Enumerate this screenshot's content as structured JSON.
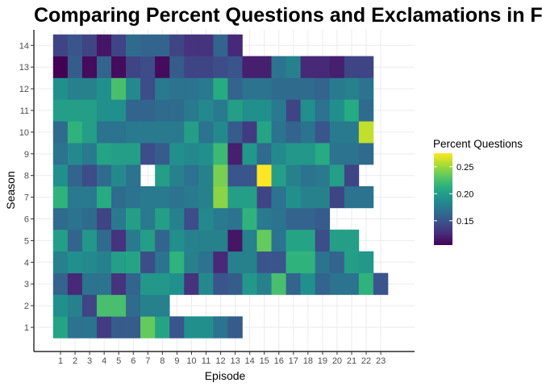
{
  "chart_data": {
    "type": "heatmap",
    "title": "Comparing Percent Questions and Exclamations in Friends",
    "xlabel": "Episode",
    "ylabel": "Season",
    "x_categories": [
      "1",
      "2",
      "3",
      "4",
      "5",
      "6",
      "7",
      "8",
      "9",
      "10",
      "11",
      "12",
      "13",
      "14",
      "15",
      "16",
      "17",
      "18",
      "19",
      "20",
      "21",
      "22",
      "23"
    ],
    "y_categories": [
      "1",
      "2",
      "3",
      "4",
      "5",
      "6",
      "7",
      "8",
      "9",
      "10",
      "11",
      "12",
      "13",
      "14"
    ],
    "legend": {
      "title": "Percent Questions",
      "ticks": [
        0.15,
        0.2,
        0.25
      ],
      "tick_labels": [
        "0.15",
        "0.20",
        "0.25"
      ],
      "min": 0.105,
      "max": 0.275,
      "colorscale": "viridis",
      "position": "right"
    },
    "grid": true,
    "rows": [
      {
        "season": 1,
        "values": [
          0.205,
          0.17,
          0.17,
          0.135,
          0.155,
          0.155,
          0.235,
          0.205,
          0.15,
          0.19,
          0.19,
          0.17,
          0.155
        ]
      },
      {
        "season": 2,
        "values": [
          0.19,
          0.18,
          0.14,
          0.225,
          0.225,
          0.165,
          0.18,
          0.18
        ]
      },
      {
        "season": 3,
        "values": [
          0.16,
          0.125,
          0.17,
          0.17,
          0.13,
          0.16,
          0.195,
          0.195,
          0.19,
          0.13,
          0.185,
          0.15,
          0.155,
          0.195,
          0.18,
          0.225,
          0.16,
          0.19,
          0.16,
          0.17,
          0.17,
          0.215,
          0.15
        ]
      },
      {
        "season": 4,
        "values": [
          0.18,
          0.19,
          0.185,
          0.18,
          0.2,
          0.205,
          0.145,
          0.17,
          0.215,
          0.18,
          0.17,
          0.125,
          0.18,
          0.18,
          0.15,
          0.15,
          0.215,
          0.215,
          0.17,
          0.16,
          0.2,
          0.195
        ]
      },
      {
        "season": 5,
        "values": [
          0.2,
          0.16,
          0.195,
          0.165,
          0.13,
          0.175,
          0.2,
          0.16,
          0.19,
          0.18,
          0.18,
          0.18,
          0.115,
          0.18,
          0.235,
          0.17,
          0.205,
          0.205,
          0.145,
          0.2,
          0.2
        ]
      },
      {
        "season": 6,
        "values": [
          0.165,
          0.17,
          0.165,
          0.14,
          0.175,
          0.2,
          0.175,
          0.2,
          0.18,
          0.145,
          0.185,
          0.175,
          0.17,
          0.215,
          0.175,
          0.17,
          0.16,
          0.16,
          0.155
        ]
      },
      {
        "season": 7,
        "values": [
          0.215,
          0.175,
          0.175,
          0.21,
          0.165,
          0.17,
          0.175,
          0.175,
          0.17,
          0.175,
          0.18,
          0.245,
          0.2,
          0.2,
          0.14,
          0.17,
          0.19,
          0.18,
          0.18,
          0.14,
          0.17,
          0.17
        ]
      },
      {
        "season": 8,
        "values": [
          0.19,
          0.16,
          0.145,
          0.165,
          0.185,
          0.17,
          null,
          0.2,
          0.18,
          0.17,
          0.18,
          0.24,
          0.15,
          0.15,
          0.275,
          0.2,
          0.18,
          0.17,
          0.175,
          0.2,
          0.14
        ]
      },
      {
        "season": 9,
        "values": [
          0.17,
          0.185,
          0.175,
          0.205,
          0.2,
          0.2,
          0.145,
          0.155,
          0.19,
          0.185,
          0.19,
          0.22,
          0.12,
          0.195,
          0.165,
          0.185,
          0.195,
          0.195,
          0.21,
          0.17,
          0.17,
          0.165
        ]
      },
      {
        "season": 10,
        "values": [
          0.165,
          0.215,
          0.2,
          0.17,
          0.17,
          0.175,
          0.175,
          0.175,
          0.175,
          0.2,
          0.17,
          0.185,
          0.155,
          0.135,
          0.205,
          0.17,
          0.16,
          0.17,
          0.15,
          0.175,
          0.175,
          0.26
        ]
      },
      {
        "season": 11,
        "values": [
          0.2,
          0.2,
          0.2,
          0.19,
          0.19,
          0.16,
          0.16,
          0.165,
          0.165,
          0.175,
          0.185,
          0.175,
          0.2,
          0.19,
          0.19,
          0.175,
          0.14,
          0.19,
          0.17,
          0.19,
          0.21,
          0.165
        ]
      },
      {
        "season": 12,
        "values": [
          0.19,
          0.18,
          0.18,
          0.19,
          0.225,
          0.185,
          0.145,
          0.175,
          0.17,
          0.17,
          0.175,
          0.21,
          0.16,
          0.17,
          0.17,
          0.165,
          0.165,
          0.165,
          0.16,
          0.175,
          0.18,
          0.17
        ]
      },
      {
        "season": 13,
        "values": [
          0.105,
          0.155,
          0.11,
          0.16,
          0.11,
          0.14,
          0.145,
          0.11,
          0.155,
          0.14,
          0.14,
          0.145,
          0.15,
          0.12,
          0.12,
          0.17,
          0.18,
          0.125,
          0.125,
          0.12,
          0.14,
          0.14
        ]
      },
      {
        "season": 14,
        "values": [
          0.14,
          0.15,
          0.14,
          0.115,
          0.14,
          0.165,
          0.16,
          0.16,
          0.14,
          0.13,
          0.13,
          0.16,
          0.125
        ]
      }
    ]
  }
}
